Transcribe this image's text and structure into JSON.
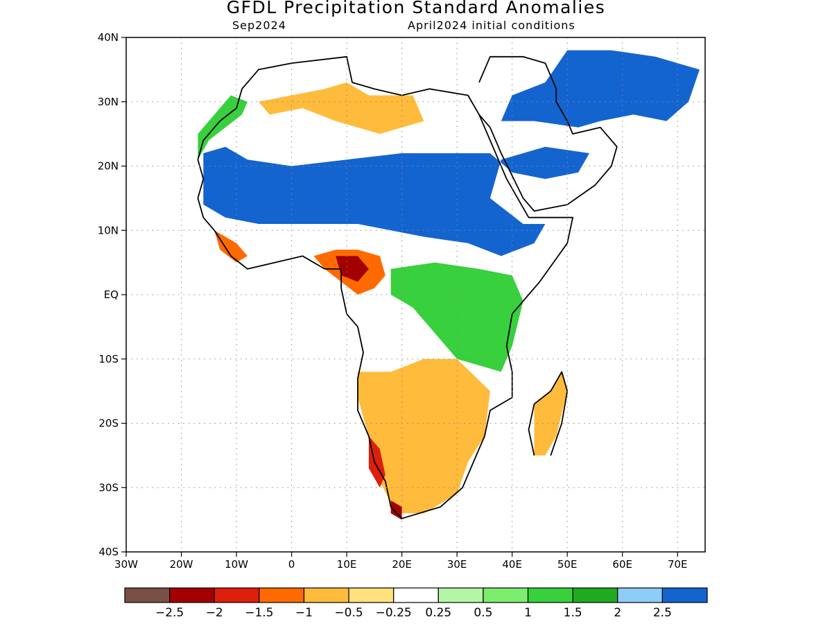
{
  "title": "GFDL Precipitation Standard Anomalies",
  "subtitle_left": "Sep2024",
  "subtitle_right": "April2024 initial conditions",
  "map": {
    "lon_range": [
      -30,
      75
    ],
    "lat_range": [
      -40,
      40
    ],
    "y_ticks": [
      {
        "lat": 40,
        "label": "40N"
      },
      {
        "lat": 30,
        "label": "30N"
      },
      {
        "lat": 20,
        "label": "20N"
      },
      {
        "lat": 10,
        "label": "10N"
      },
      {
        "lat": 0,
        "label": "EQ"
      },
      {
        "lat": -10,
        "label": "10S"
      },
      {
        "lat": -20,
        "label": "20S"
      },
      {
        "lat": -30,
        "label": "30S"
      },
      {
        "lat": -40,
        "label": "40S"
      }
    ],
    "x_ticks": [
      {
        "lon": -30,
        "label": "30W"
      },
      {
        "lon": -20,
        "label": "20W"
      },
      {
        "lon": -10,
        "label": "10W"
      },
      {
        "lon": 0,
        "label": "0"
      },
      {
        "lon": 10,
        "label": "10E"
      },
      {
        "lon": 20,
        "label": "20E"
      },
      {
        "lon": 30,
        "label": "30E"
      },
      {
        "lon": 40,
        "label": "40E"
      },
      {
        "lon": 50,
        "label": "50E"
      },
      {
        "lon": 60,
        "label": "60E"
      },
      {
        "lon": 70,
        "label": "70E"
      }
    ],
    "grid": "dotted"
  },
  "colorbar": {
    "colors": [
      "#7a5044",
      "#a30000",
      "#dd1f0c",
      "#ff6a00",
      "#ffbb3b",
      "#ffe27b",
      "#ffffff",
      "#b3f7a6",
      "#7ced6c",
      "#38d03c",
      "#1fab1f",
      "#8ecdf7",
      "#1464d0"
    ],
    "labels": [
      "−2.5",
      "−2",
      "−1.5",
      "−1",
      "−0.5",
      "−0.25",
      "0.25",
      "0.5",
      "1",
      "1.5",
      "2",
      "2.5"
    ]
  },
  "regions": [
    {
      "name": "sahel-wet-band",
      "color": "#1464d0",
      "points": [
        [
          -16,
          22
        ],
        [
          -12,
          23
        ],
        [
          -8,
          21
        ],
        [
          0,
          20
        ],
        [
          10,
          21
        ],
        [
          20,
          22
        ],
        [
          30,
          22
        ],
        [
          36,
          22
        ],
        [
          40,
          19
        ],
        [
          46,
          18
        ],
        [
          52,
          19
        ],
        [
          54,
          22
        ],
        [
          46,
          23
        ],
        [
          38,
          21
        ],
        [
          36,
          15
        ],
        [
          42,
          11
        ],
        [
          46,
          11
        ],
        [
          44,
          8
        ],
        [
          38,
          6
        ],
        [
          32,
          8
        ],
        [
          24,
          9
        ],
        [
          18,
          10
        ],
        [
          12,
          11
        ],
        [
          6,
          11
        ],
        [
          0,
          11
        ],
        [
          -6,
          11
        ],
        [
          -12,
          12
        ],
        [
          -16,
          14
        ]
      ]
    },
    {
      "name": "arabia-wet",
      "color": "#1464d0",
      "points": [
        [
          38,
          27
        ],
        [
          44,
          27
        ],
        [
          52,
          26
        ],
        [
          56,
          27
        ],
        [
          62,
          28
        ],
        [
          68,
          27
        ],
        [
          72,
          30
        ],
        [
          74,
          35
        ],
        [
          66,
          37
        ],
        [
          58,
          38
        ],
        [
          50,
          38
        ],
        [
          46,
          33
        ],
        [
          40,
          31
        ]
      ]
    },
    {
      "name": "west-coast-green",
      "color": "#38d03c",
      "points": [
        [
          -17,
          21
        ],
        [
          -15,
          24
        ],
        [
          -12,
          26
        ],
        [
          -9,
          28
        ],
        [
          -8,
          30
        ],
        [
          -11,
          31
        ],
        [
          -14,
          28
        ],
        [
          -17,
          25
        ]
      ]
    },
    {
      "name": "north-africa-dry",
      "color": "#ffbb3b",
      "points": [
        [
          -6,
          30
        ],
        [
          0,
          31
        ],
        [
          6,
          32
        ],
        [
          10,
          33
        ],
        [
          14,
          31
        ],
        [
          22,
          31
        ],
        [
          24,
          27
        ],
        [
          16,
          25
        ],
        [
          8,
          27
        ],
        [
          2,
          29
        ],
        [
          -4,
          28
        ]
      ]
    },
    {
      "name": "gulf-guinea-dry",
      "color": "#ff6a00",
      "points": [
        [
          4,
          6
        ],
        [
          8,
          7
        ],
        [
          12,
          7
        ],
        [
          16,
          6
        ],
        [
          17,
          3
        ],
        [
          15,
          1
        ],
        [
          12,
          0
        ],
        [
          9,
          2
        ],
        [
          6,
          4
        ]
      ]
    },
    {
      "name": "gulf-guinea-core",
      "color": "#a30000",
      "points": [
        [
          8,
          6
        ],
        [
          12,
          6
        ],
        [
          14,
          4
        ],
        [
          12,
          2
        ],
        [
          9,
          3
        ]
      ]
    },
    {
      "name": "west-africa-coast-dry",
      "color": "#ff6a00",
      "points": [
        [
          -14,
          10
        ],
        [
          -10,
          8
        ],
        [
          -8,
          6
        ],
        [
          -10,
          5
        ],
        [
          -13,
          7
        ]
      ]
    },
    {
      "name": "east-africa-green",
      "color": "#38d03c",
      "points": [
        [
          18,
          4
        ],
        [
          26,
          5
        ],
        [
          34,
          4
        ],
        [
          40,
          3
        ],
        [
          42,
          -1
        ],
        [
          40,
          -8
        ],
        [
          38,
          -12
        ],
        [
          30,
          -10
        ],
        [
          26,
          -6
        ],
        [
          22,
          -2
        ],
        [
          18,
          0
        ]
      ]
    },
    {
      "name": "southern-africa-dry",
      "color": "#ffbb3b",
      "points": [
        [
          12,
          -12
        ],
        [
          18,
          -12
        ],
        [
          24,
          -10
        ],
        [
          30,
          -10
        ],
        [
          36,
          -15
        ],
        [
          35,
          -22
        ],
        [
          32,
          -26
        ],
        [
          30,
          -31
        ],
        [
          24,
          -34
        ],
        [
          19,
          -34
        ],
        [
          16,
          -29
        ],
        [
          14,
          -22
        ],
        [
          12,
          -16
        ]
      ]
    },
    {
      "name": "namibia-strong-dry",
      "color": "#dd1f0c",
      "points": [
        [
          14,
          -22
        ],
        [
          16,
          -24
        ],
        [
          17,
          -28
        ],
        [
          16,
          -30
        ],
        [
          14,
          -27
        ]
      ]
    },
    {
      "name": "cape-strong-dry",
      "color": "#a30000",
      "points": [
        [
          18,
          -32
        ],
        [
          20,
          -33
        ],
        [
          20,
          -35
        ],
        [
          18,
          -34
        ]
      ]
    },
    {
      "name": "madagascar-dry",
      "color": "#ffbb3b",
      "points": [
        [
          44,
          -25
        ],
        [
          44,
          -17
        ],
        [
          47,
          -15
        ],
        [
          49,
          -12
        ],
        [
          50,
          -15
        ],
        [
          48,
          -22
        ],
        [
          46,
          -25
        ]
      ]
    }
  ],
  "outlines": [
    {
      "name": "africa-coast",
      "points": [
        [
          -17,
          21
        ],
        [
          -16,
          24
        ],
        [
          -13,
          27
        ],
        [
          -10,
          29
        ],
        [
          -9,
          32
        ],
        [
          -6,
          35
        ],
        [
          0,
          36
        ],
        [
          10,
          37
        ],
        [
          11,
          33
        ],
        [
          15,
          32
        ],
        [
          20,
          31
        ],
        [
          25,
          32
        ],
        [
          32,
          31
        ],
        [
          34,
          28
        ],
        [
          36,
          24
        ],
        [
          39,
          18
        ],
        [
          43,
          12
        ],
        [
          51,
          12
        ],
        [
          50,
          8
        ],
        [
          45,
          2
        ],
        [
          40,
          -3
        ],
        [
          39,
          -8
        ],
        [
          40,
          -12
        ],
        [
          40,
          -16
        ],
        [
          36,
          -18
        ],
        [
          35,
          -22
        ],
        [
          33,
          -26
        ],
        [
          31,
          -30
        ],
        [
          27,
          -33
        ],
        [
          20,
          -34.8
        ],
        [
          18,
          -33
        ],
        [
          17,
          -29
        ],
        [
          15,
          -26
        ],
        [
          14,
          -22
        ],
        [
          12,
          -18
        ],
        [
          12,
          -13
        ],
        [
          13,
          -9
        ],
        [
          12,
          -5
        ],
        [
          10,
          -3
        ],
        [
          9,
          1
        ],
        [
          9,
          4
        ],
        [
          6,
          4
        ],
        [
          2,
          6
        ],
        [
          -3,
          5
        ],
        [
          -8,
          4
        ],
        [
          -11,
          6
        ],
        [
          -14,
          10
        ],
        [
          -16,
          12
        ],
        [
          -17,
          15
        ],
        [
          -16,
          18
        ],
        [
          -17,
          21
        ]
      ]
    },
    {
      "name": "arabia-coast",
      "points": [
        [
          34,
          28
        ],
        [
          36,
          26
        ],
        [
          38,
          22
        ],
        [
          42,
          15
        ],
        [
          44,
          13
        ],
        [
          50,
          14
        ],
        [
          55,
          17
        ],
        [
          58,
          20
        ],
        [
          59,
          23
        ],
        [
          56,
          26
        ],
        [
          51,
          25
        ],
        [
          50,
          27
        ],
        [
          48,
          30
        ],
        [
          48,
          32
        ],
        [
          46,
          36
        ],
        [
          42,
          37
        ],
        [
          36,
          37
        ],
        [
          34,
          33
        ]
      ]
    },
    {
      "name": "madagascar",
      "points": [
        [
          44,
          -25
        ],
        [
          43,
          -21
        ],
        [
          44,
          -17
        ],
        [
          47,
          -15
        ],
        [
          49,
          -12
        ],
        [
          50,
          -15
        ],
        [
          49,
          -20
        ],
        [
          47,
          -25
        ]
      ]
    }
  ]
}
